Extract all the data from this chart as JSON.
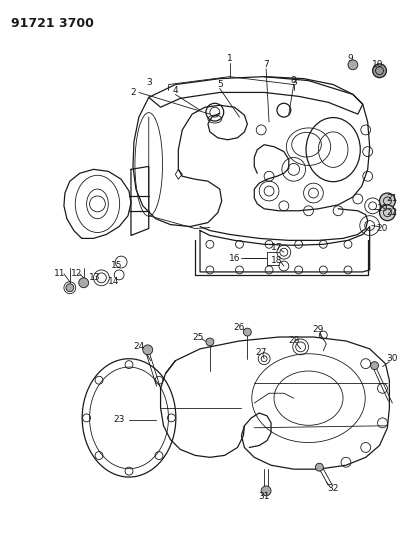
{
  "title": "91721 3700",
  "bg_color": "#ffffff",
  "fig_width": 4.04,
  "fig_height": 5.33,
  "dpi": 100,
  "line_color": "#1a1a1a",
  "label_fontsize": 6.5,
  "title_fontsize": 9
}
